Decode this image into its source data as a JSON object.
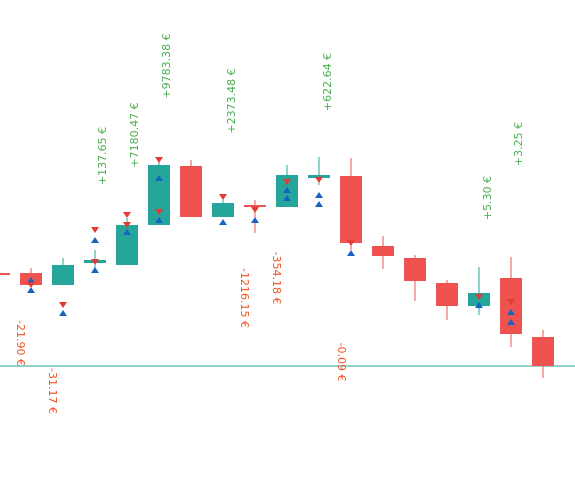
{
  "chart_data": {
    "type": "candlestick",
    "open": [
      230,
      230,
      218,
      240,
      238,
      278,
      337,
      286,
      298,
      296,
      325,
      327,
      257,
      245,
      220,
      197,
      225,
      166
    ],
    "high": [
      231,
      235,
      245,
      253,
      285,
      343,
      343,
      308,
      303,
      338,
      346,
      345,
      267,
      248,
      223,
      236,
      246,
      173
    ],
    "low": [
      228,
      213,
      218,
      233,
      238,
      278,
      286,
      286,
      270,
      296,
      318,
      253,
      234,
      202,
      183,
      188,
      156,
      125
    ],
    "close": [
      229,
      218,
      238,
      243,
      278,
      338,
      286,
      300,
      296,
      328,
      328,
      260,
      247,
      222,
      197,
      210,
      169,
      137
    ],
    "up_color": "#26a69a",
    "down_color": "#ef5350",
    "ylim": [
      0,
      503
    ],
    "baseline": 137,
    "annotations": [
      "+137.65 €",
      "+7180.47 €",
      "+9783.38 €",
      "+2373.48 €",
      "+622.64 €",
      "+5.30 €",
      "+3.25 €",
      "-21.90 €",
      "-31.17 €",
      "-1216.15 €",
      "-354.18 €",
      "-0.09 €"
    ]
  }
}
